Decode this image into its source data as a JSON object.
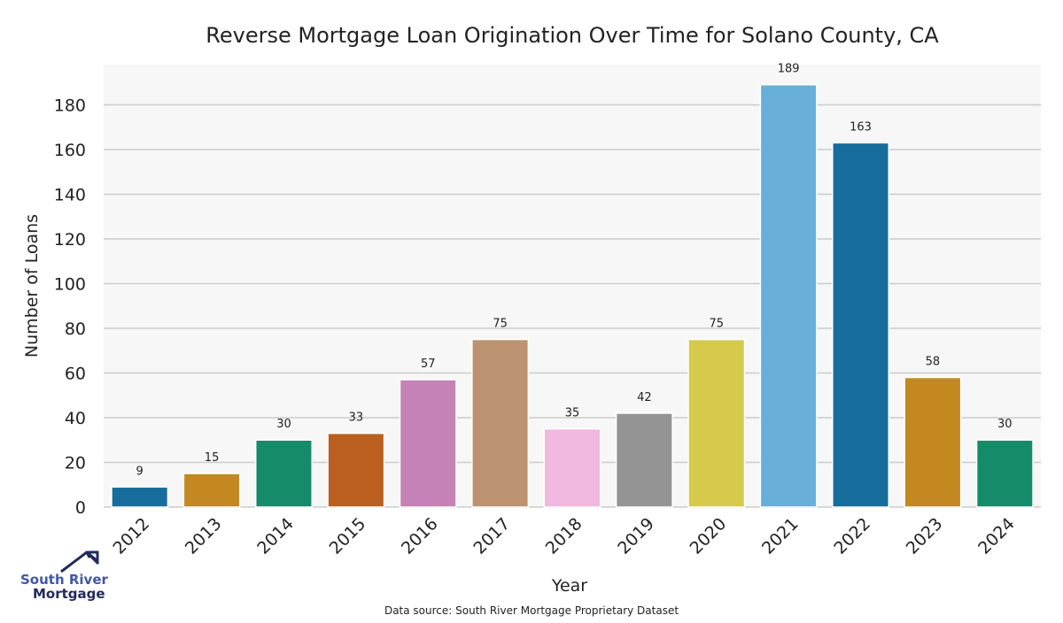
{
  "chart_data": {
    "type": "bar",
    "title": "Reverse Mortgage Loan Origination Over Time for Solano County, CA",
    "xlabel": "Year",
    "ylabel": "Number of Loans",
    "categories": [
      "2012",
      "2013",
      "2014",
      "2015",
      "2016",
      "2017",
      "2018",
      "2019",
      "2020",
      "2021",
      "2022",
      "2023",
      "2024"
    ],
    "values": [
      9,
      15,
      30,
      33,
      57,
      75,
      35,
      42,
      75,
      189,
      163,
      58,
      30
    ],
    "colors": [
      "#176d9c",
      "#c38820",
      "#158b6a",
      "#ba5f1f",
      "#c482b6",
      "#bc9270",
      "#f0b7df",
      "#949494",
      "#d5ca4b",
      "#68b0d9",
      "#176d9c",
      "#c38820",
      "#158b6a"
    ],
    "ylim": [
      0,
      198
    ],
    "yticks": [
      0,
      20,
      40,
      60,
      80,
      100,
      120,
      140,
      160,
      180
    ],
    "grid": true,
    "data_labels": true,
    "background": "#f7f7f7"
  },
  "source": "Data source: South River Mortgage Proprietary Dataset",
  "logo": {
    "line1": "South River",
    "line2": "Mortgage"
  }
}
